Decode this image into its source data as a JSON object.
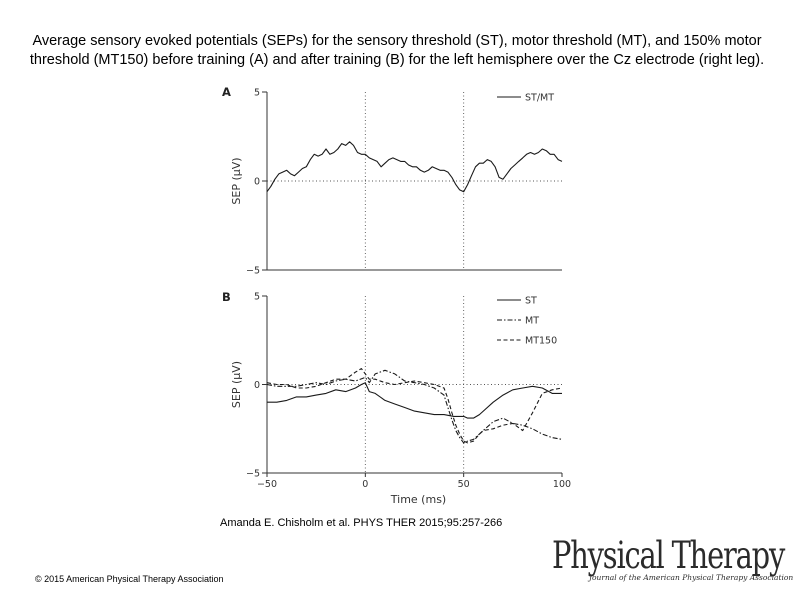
{
  "title": "Average sensory evoked potentials (SEPs) for the sensory threshold (ST), motor threshold (MT), and 150% motor threshold (MT150) before training (A) and after training (B) for the left hemisphere over the Cz electrode (right leg).",
  "citation": "Amanda E. Chisholm et al. PHYS THER 2015;95:257-266",
  "copyright": "© 2015 American Physical Therapy Association",
  "logo": {
    "name": "Physical Therapy",
    "subtitle": "Journal of the American Physical Therapy Association"
  },
  "chart_data": [
    {
      "type": "line",
      "panel_label": "A",
      "ylabel": "SEP (μV)",
      "xlim": [
        -50,
        100
      ],
      "ylim": [
        -5,
        5
      ],
      "yticks": [
        5,
        0,
        -5
      ],
      "ytick_labels": [
        "5",
        "0",
        "−5"
      ],
      "reference_lines": {
        "x": [
          0,
          50
        ],
        "y": [
          0
        ]
      },
      "series": [
        {
          "name": "ST/MT",
          "style": "solid",
          "x": [
            -50,
            -48,
            -46,
            -44,
            -42,
            -40,
            -38,
            -36,
            -34,
            -32,
            -30,
            -28,
            -26,
            -24,
            -22,
            -20,
            -18,
            -16,
            -14,
            -12,
            -10,
            -8,
            -6,
            -4,
            -2,
            0,
            2,
            4,
            6,
            8,
            10,
            12,
            14,
            16,
            18,
            20,
            22,
            24,
            26,
            28,
            30,
            32,
            34,
            36,
            38,
            40,
            42,
            44,
            46,
            48,
            50,
            52,
            54,
            56,
            58,
            60,
            62,
            64,
            66,
            68,
            70,
            72,
            74,
            76,
            78,
            80,
            82,
            84,
            86,
            88,
            90,
            92,
            94,
            96,
            98,
            100
          ],
          "y": [
            -0.6,
            -0.3,
            0.1,
            0.4,
            0.5,
            0.6,
            0.4,
            0.3,
            0.5,
            0.7,
            0.8,
            1.2,
            1.5,
            1.4,
            1.5,
            1.8,
            1.5,
            1.6,
            1.8,
            2.1,
            2.0,
            2.2,
            2.0,
            1.6,
            1.5,
            1.5,
            1.3,
            1.2,
            1.1,
            0.8,
            1.0,
            1.2,
            1.3,
            1.2,
            1.1,
            1.1,
            0.9,
            0.8,
            0.8,
            0.6,
            0.5,
            0.6,
            0.8,
            0.7,
            0.6,
            0.6,
            0.5,
            0.2,
            -0.2,
            -0.5,
            -0.6,
            -0.2,
            0.3,
            0.8,
            1.0,
            1.0,
            1.2,
            1.1,
            0.8,
            0.2,
            0.1,
            0.4,
            0.7,
            0.9,
            1.1,
            1.3,
            1.5,
            1.6,
            1.5,
            1.6,
            1.8,
            1.7,
            1.5,
            1.5,
            1.2,
            1.1
          ]
        }
      ]
    },
    {
      "type": "line",
      "panel_label": "B",
      "xlabel": "Time (ms)",
      "ylabel": "SEP (μV)",
      "xlim": [
        -50,
        100
      ],
      "ylim": [
        -5,
        5
      ],
      "xticks": [
        -50,
        0,
        50,
        100
      ],
      "xtick_labels": [
        "−50",
        "0",
        "50",
        "100"
      ],
      "yticks": [
        5,
        0,
        -5
      ],
      "ytick_labels": [
        "5",
        "0",
        "−5"
      ],
      "reference_lines": {
        "x": [
          0,
          50
        ],
        "y": [
          0
        ]
      },
      "series": [
        {
          "name": "ST",
          "style": "solid",
          "x": [
            -50,
            -45,
            -40,
            -35,
            -30,
            -25,
            -20,
            -15,
            -10,
            -5,
            -2,
            0,
            2,
            5,
            10,
            15,
            20,
            25,
            30,
            35,
            40,
            45,
            50,
            52,
            55,
            58,
            60,
            65,
            70,
            75,
            80,
            85,
            90,
            95,
            100
          ],
          "y": [
            -1.0,
            -1.0,
            -0.9,
            -0.7,
            -0.7,
            -0.6,
            -0.5,
            -0.3,
            -0.4,
            -0.2,
            0.0,
            0.1,
            -0.4,
            -0.5,
            -0.9,
            -1.1,
            -1.3,
            -1.5,
            -1.6,
            -1.7,
            -1.7,
            -1.8,
            -1.8,
            -1.9,
            -1.9,
            -1.7,
            -1.5,
            -1.0,
            -0.6,
            -0.3,
            -0.2,
            -0.1,
            -0.2,
            -0.5,
            -0.5
          ]
        },
        {
          "name": "MT",
          "style": "dash-dot",
          "x": [
            -50,
            -45,
            -40,
            -35,
            -30,
            -25,
            -20,
            -15,
            -10,
            -5,
            0,
            2,
            5,
            10,
            15,
            20,
            25,
            30,
            35,
            40,
            42,
            44,
            46,
            48,
            50,
            52,
            55,
            60,
            65,
            70,
            75,
            80,
            85,
            90,
            95,
            100
          ],
          "y": [
            0.0,
            -0.1,
            -0.1,
            -0.1,
            0.0,
            0.1,
            0.0,
            0.2,
            0.3,
            0.2,
            0.4,
            0.1,
            0.6,
            0.8,
            0.6,
            0.2,
            0.1,
            0.0,
            -0.2,
            -0.6,
            -1.3,
            -2.0,
            -2.6,
            -3.0,
            -3.3,
            -3.2,
            -3.1,
            -2.6,
            -2.1,
            -1.9,
            -2.2,
            -2.3,
            -2.5,
            -2.8,
            -3.0,
            -3.1
          ]
        },
        {
          "name": "MT150",
          "style": "dashed",
          "x": [
            -50,
            -45,
            -40,
            -35,
            -30,
            -25,
            -20,
            -15,
            -10,
            -5,
            -2,
            0,
            2,
            5,
            10,
            15,
            20,
            25,
            30,
            35,
            40,
            42,
            44,
            46,
            48,
            50,
            52,
            55,
            58,
            60,
            65,
            70,
            75,
            80,
            85,
            90,
            95,
            100
          ],
          "y": [
            0.1,
            0.0,
            0.0,
            -0.2,
            -0.2,
            -0.1,
            0.1,
            0.3,
            0.3,
            0.7,
            0.9,
            0.6,
            0.3,
            0.3,
            0.1,
            0.0,
            0.1,
            0.2,
            0.1,
            0.0,
            -0.2,
            -0.8,
            -1.6,
            -2.3,
            -2.8,
            -3.2,
            -3.3,
            -3.2,
            -2.8,
            -2.6,
            -2.5,
            -2.3,
            -2.2,
            -2.6,
            -1.6,
            -0.5,
            -0.3,
            -0.2
          ]
        }
      ]
    }
  ]
}
